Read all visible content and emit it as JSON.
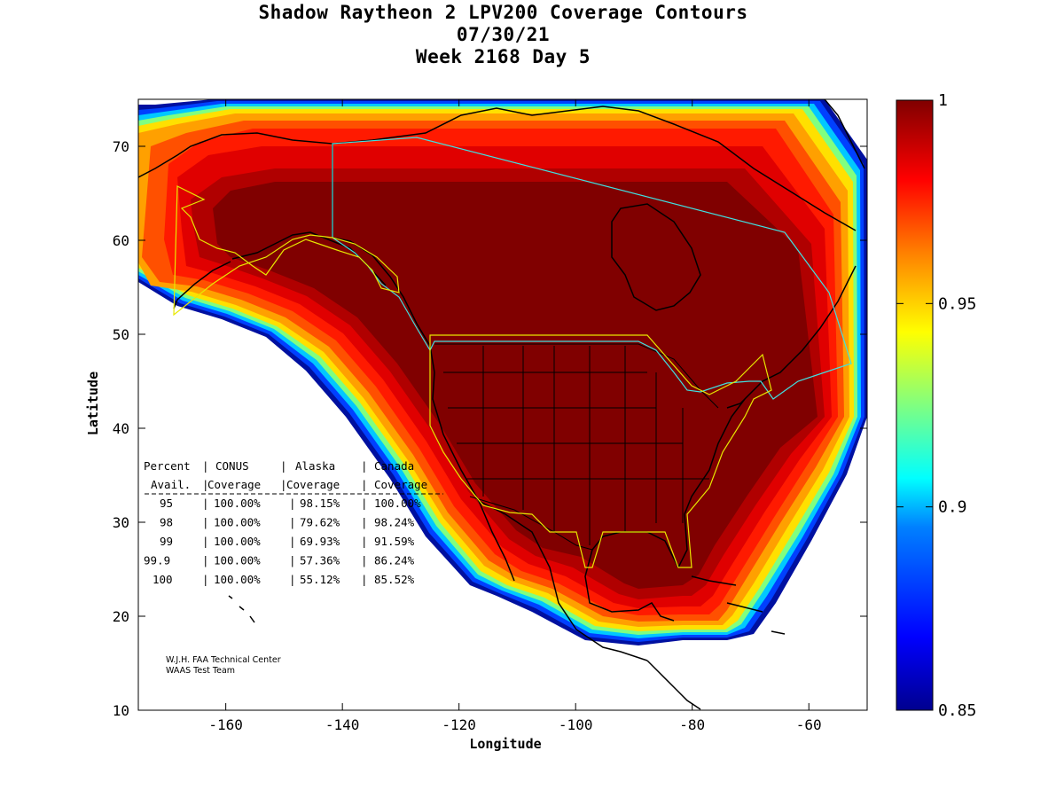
{
  "title": {
    "line1": "Shadow Raytheon 2 LPV200 Coverage Contours",
    "line2": "07/30/21",
    "line3": "Week 2168 Day 5"
  },
  "axes": {
    "xlabel": "Longitude",
    "ylabel": "Latitude",
    "xlim": [
      -175,
      -50
    ],
    "ylim": [
      10,
      75
    ],
    "xticks": [
      -160,
      -140,
      -120,
      -100,
      -80,
      -60
    ],
    "yticks": [
      10,
      20,
      30,
      40,
      50,
      60,
      70
    ]
  },
  "colorbar": {
    "range": [
      0.85,
      1
    ],
    "tick_labels": [
      "1",
      "0.95",
      "0.9",
      "0.85"
    ],
    "tick_values": [
      1,
      0.95,
      0.9,
      0.85
    ],
    "colormap": "jet"
  },
  "stats_table": {
    "header1": [
      "Percent",
      "CONUS",
      "Alaska",
      "Canada"
    ],
    "header2": [
      "Avail.",
      "Coverage",
      "Coverage",
      "Coverage"
    ],
    "rows": [
      {
        "percent": "95",
        "conus": "100.00%",
        "alaska": "98.15%",
        "canada": "100.00%"
      },
      {
        "percent": "98",
        "conus": "100.00%",
        "alaska": "79.62%",
        "canada": "98.24%"
      },
      {
        "percent": "99",
        "conus": "100.00%",
        "alaska": "69.93%",
        "canada": "91.59%"
      },
      {
        "percent": "99.9",
        "conus": "100.00%",
        "alaska": "57.36%",
        "canada": "86.24%"
      },
      {
        "percent": "100",
        "conus": "100.00%",
        "alaska": "55.12%",
        "canada": "85.52%"
      }
    ]
  },
  "credit": {
    "line1": "W.J.H. FAA Technical Center",
    "line2": "WAAS Test Team"
  },
  "colors": {
    "dark_red": "#800000",
    "red": "#ff1a00",
    "orange": "#ff8000",
    "yellow": "#ffe000",
    "cyan": "#00e0ff",
    "blue": "#0050ff",
    "navy": "#000090",
    "service_boundary_yellow": "#e8e800",
    "service_boundary_cyan": "#40e0e0"
  }
}
